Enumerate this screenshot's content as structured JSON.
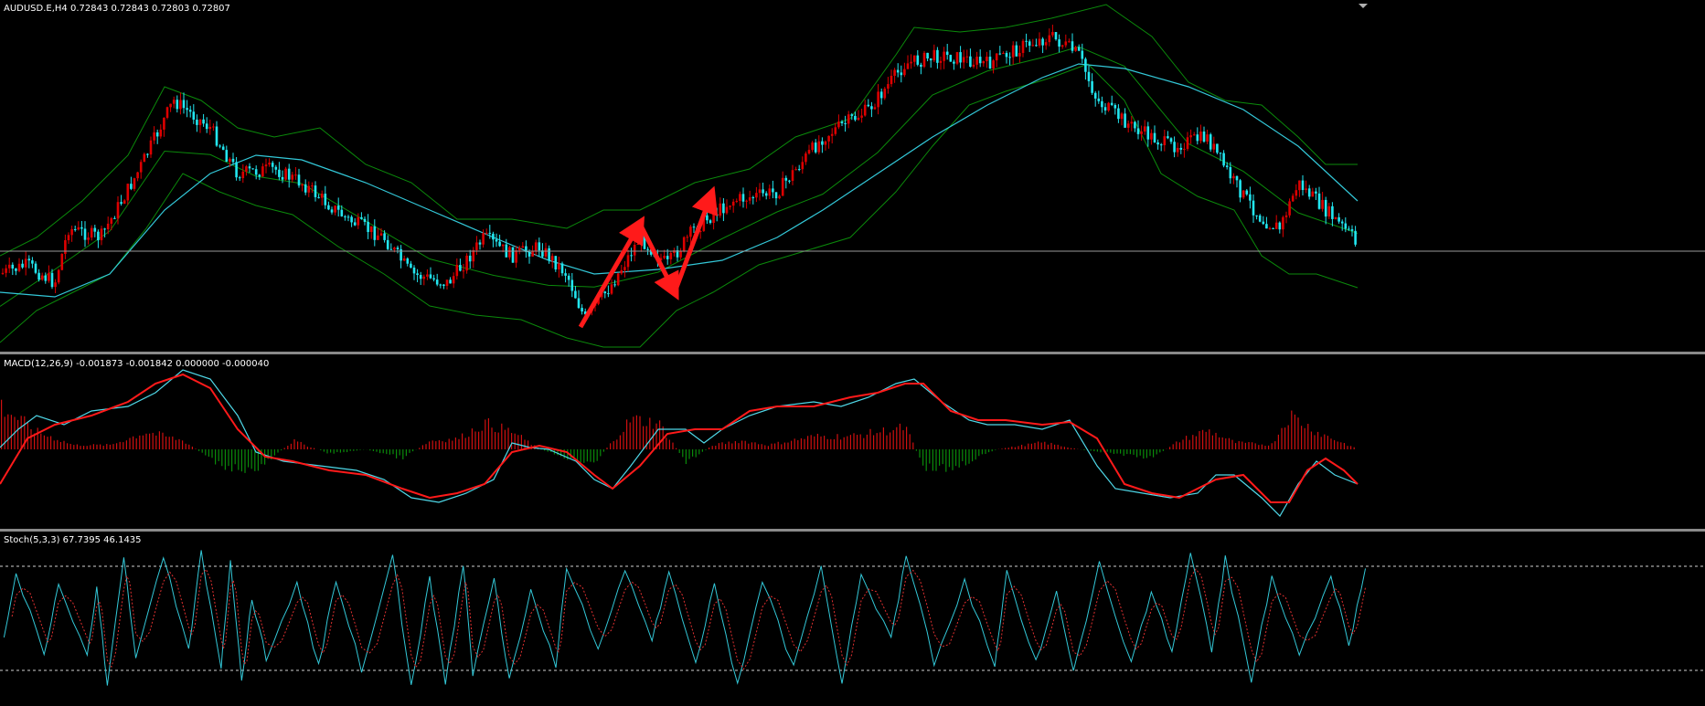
{
  "colors": {
    "background": "#000000",
    "bull_candle": "#dd0000",
    "bear_candle": "#22e6f0",
    "bollinger": "#0b8a0b",
    "moving_average": "#33c8d8",
    "price_line": "#9a9a9a",
    "annotation_arrow": "#ff1a1a",
    "macd_line": "#4fd8e8",
    "macd_signal": "#ff1a1a",
    "hist_positive": "#d01010",
    "hist_negative": "#0a8a0a",
    "stoch_main": "#33c8d8",
    "stoch_signal": "#e03030",
    "separator": "#8a8a8a"
  },
  "main_pane": {
    "label": "AUDUSD.E,H4  0.72843 0.72843 0.72803 0.72807"
  },
  "macd_pane": {
    "label": "MACD(12,26,9) -0.001873 -0.001842 0.000000 -0.000040"
  },
  "stoch_pane": {
    "label": "Stoch(5,3,3) 67.7395 46.1435"
  },
  "markers": {
    "chart_shift_icon": "triangle-down-icon"
  }
}
